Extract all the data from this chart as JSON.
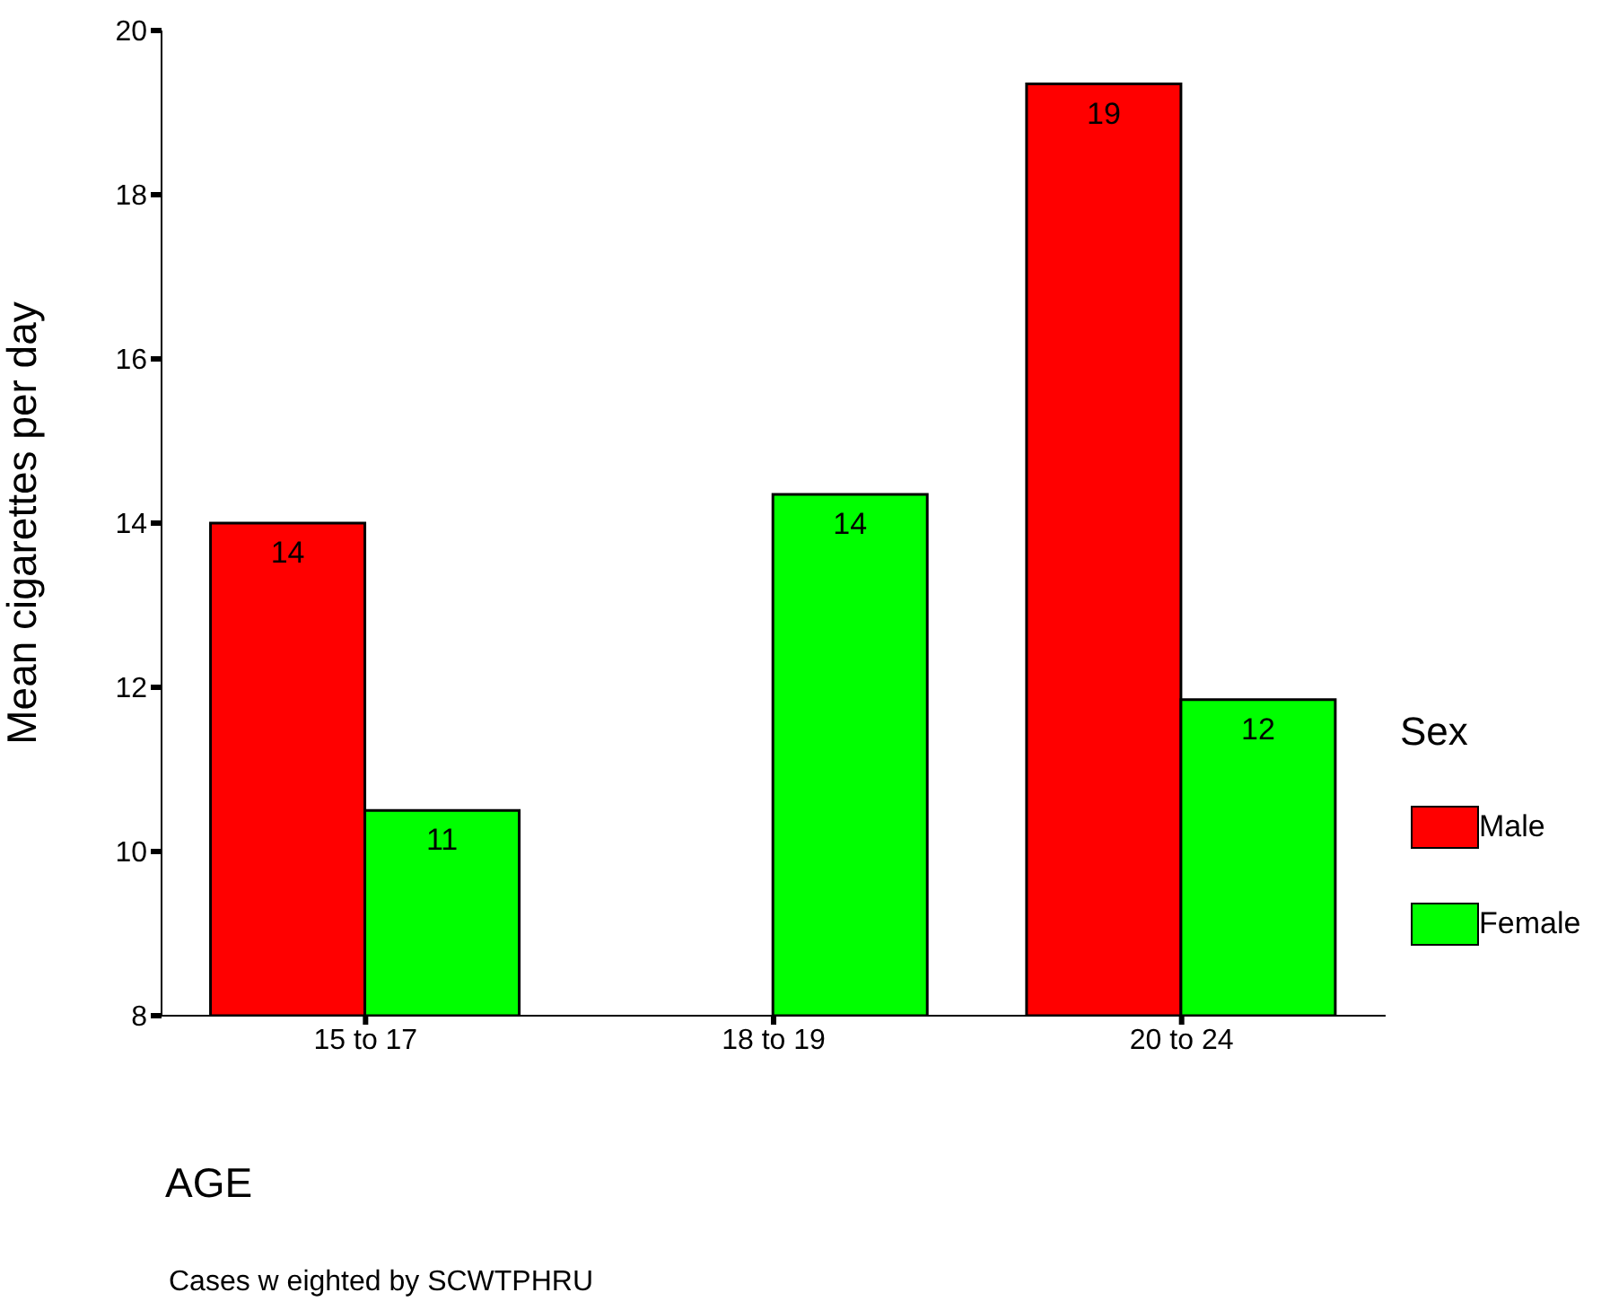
{
  "chart_data": {
    "type": "bar",
    "xlabel": "AGE",
    "ylabel": "Mean cigarettes per day",
    "legend_title": "Sex",
    "categories": [
      "15 to 17",
      "18 to 19",
      "20 to 24"
    ],
    "series": [
      {
        "name": "Male",
        "color": "#ff0000",
        "values": [
          14.0,
          null,
          19.35
        ],
        "value_labels": [
          "14",
          null,
          "19"
        ]
      },
      {
        "name": "Female",
        "color": "#00ff00",
        "values": [
          10.5,
          14.35,
          11.85
        ],
        "value_labels": [
          "11",
          "14",
          "12"
        ]
      }
    ],
    "ylim": [
      8,
      20
    ],
    "yticks": [
      8,
      10,
      12,
      14,
      16,
      18,
      20
    ],
    "grid": false,
    "legend": "right",
    "annotations": [
      "Cases w eighted by SCWTPHRU"
    ]
  }
}
